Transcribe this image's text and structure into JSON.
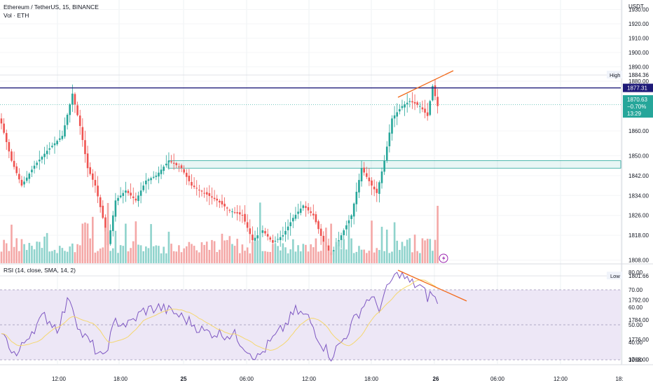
{
  "header": {
    "symbol_line": "Ethereum / TetherUS, 15, BINANCE",
    "volume_line": "Vol · ETH",
    "rsi_line": "RSI (14, close, SMA, 14, 2)"
  },
  "price_axis": {
    "currency": "USDT",
    "ticks": [
      "1930.00",
      "1920.00",
      "1910.00",
      "1900.00",
      "1890.00",
      "1880.00",
      "1860.00",
      "1850.00",
      "1842.00",
      "1834.00",
      "1826.00",
      "1818.00",
      "1808.00",
      "1792.00",
      "1784.00",
      "1776.00",
      "1768.00"
    ],
    "high_label": "High",
    "high_value": "1884.36",
    "low_label": "Low",
    "low_value": "1801.66",
    "line_value": "1877.31",
    "last_price": "1870.63",
    "last_change": "−0.70%",
    "countdown": "13:29"
  },
  "rsi_axis": {
    "ticks": [
      "80.00",
      "70.00",
      "60.00",
      "50.00",
      "40.00",
      "30.00"
    ]
  },
  "time_axis": {
    "ticks": [
      "12:00",
      "18:00",
      "25",
      "06:00",
      "12:00",
      "18:00",
      "26",
      "06:00",
      "12:00",
      "18:"
    ]
  },
  "colors": {
    "up": "#26a69a",
    "down": "#ef5350",
    "vol_up": "#8fd3cc",
    "vol_down": "#f4a7a6",
    "horizontal_line": "#1e1a78",
    "trendline": "#f26a1b",
    "rsi_line": "#7e57c2",
    "rsi_ma": "#f5d76e",
    "rsi_band": "#ede7f6",
    "zone": "#26a69a"
  },
  "chart_data": [
    {
      "type": "candlestick",
      "title": "Ethereum / TetherUS, 15, BINANCE",
      "y_unit": "USDT",
      "x_ticks": [
        "12:00",
        "18:00",
        "25",
        "06:00",
        "12:00",
        "18:00",
        "26"
      ],
      "anchors": [
        {
          "i": 0,
          "p": 1863
        },
        {
          "i": 4,
          "p": 1848
        },
        {
          "i": 8,
          "p": 1838
        },
        {
          "i": 13,
          "p": 1846
        },
        {
          "i": 18,
          "p": 1852
        },
        {
          "i": 24,
          "p": 1858
        },
        {
          "i": 28,
          "p": 1875
        },
        {
          "i": 31,
          "p": 1862
        },
        {
          "i": 34,
          "p": 1845
        },
        {
          "i": 37,
          "p": 1838
        },
        {
          "i": 40,
          "p": 1825
        },
        {
          "i": 42,
          "p": 1814
        },
        {
          "i": 45,
          "p": 1832
        },
        {
          "i": 49,
          "p": 1836
        },
        {
          "i": 53,
          "p": 1832
        },
        {
          "i": 57,
          "p": 1840
        },
        {
          "i": 61,
          "p": 1842
        },
        {
          "i": 66,
          "p": 1848
        },
        {
          "i": 71,
          "p": 1845
        },
        {
          "i": 75,
          "p": 1838
        },
        {
          "i": 80,
          "p": 1835
        },
        {
          "i": 85,
          "p": 1832
        },
        {
          "i": 90,
          "p": 1828
        },
        {
          "i": 95,
          "p": 1826
        },
        {
          "i": 99,
          "p": 1816
        },
        {
          "i": 103,
          "p": 1820
        },
        {
          "i": 107,
          "p": 1815
        },
        {
          "i": 111,
          "p": 1818
        },
        {
          "i": 115,
          "p": 1825
        },
        {
          "i": 119,
          "p": 1830
        },
        {
          "i": 123,
          "p": 1826
        },
        {
          "i": 127,
          "p": 1815
        },
        {
          "i": 130,
          "p": 1810
        },
        {
          "i": 134,
          "p": 1818
        },
        {
          "i": 138,
          "p": 1826
        },
        {
          "i": 142,
          "p": 1845
        },
        {
          "i": 146,
          "p": 1838
        },
        {
          "i": 148,
          "p": 1835
        },
        {
          "i": 151,
          "p": 1848
        },
        {
          "i": 154,
          "p": 1865
        },
        {
          "i": 158,
          "p": 1870
        },
        {
          "i": 161,
          "p": 1872
        },
        {
          "i": 165,
          "p": 1870
        },
        {
          "i": 168,
          "p": 1866
        },
        {
          "i": 170,
          "p": 1878
        },
        {
          "i": 172,
          "p": 1870
        }
      ],
      "candle_count": 173,
      "high": 1884.36,
      "low": 1801.66,
      "horizontal_level": 1877.31,
      "last": 1870.63,
      "change": "−0.70%",
      "zone": [
        1845,
        1848
      ]
    },
    {
      "type": "line",
      "title": "RSI (14, close, SMA, 14, 2)",
      "ylim": [
        30,
        80
      ],
      "y_ticks": [
        80,
        70,
        60,
        50,
        40,
        30
      ],
      "bands": [
        70,
        50,
        30
      ],
      "series": [
        {
          "name": "RSI",
          "anchors": [
            {
              "i": 0,
              "v": 45
            },
            {
              "i": 6,
              "v": 32
            },
            {
              "i": 11,
              "v": 45
            },
            {
              "i": 17,
              "v": 55
            },
            {
              "i": 22,
              "v": 48
            },
            {
              "i": 27,
              "v": 66
            },
            {
              "i": 31,
              "v": 46
            },
            {
              "i": 36,
              "v": 38
            },
            {
              "i": 40,
              "v": 30
            },
            {
              "i": 45,
              "v": 52
            },
            {
              "i": 50,
              "v": 50
            },
            {
              "i": 56,
              "v": 58
            },
            {
              "i": 62,
              "v": 60
            },
            {
              "i": 68,
              "v": 57
            },
            {
              "i": 74,
              "v": 52
            },
            {
              "i": 80,
              "v": 46
            },
            {
              "i": 86,
              "v": 45
            },
            {
              "i": 92,
              "v": 44
            },
            {
              "i": 97,
              "v": 36
            },
            {
              "i": 101,
              "v": 31
            },
            {
              "i": 106,
              "v": 40
            },
            {
              "i": 111,
              "v": 48
            },
            {
              "i": 116,
              "v": 58
            },
            {
              "i": 121,
              "v": 54
            },
            {
              "i": 126,
              "v": 40
            },
            {
              "i": 130,
              "v": 32
            },
            {
              "i": 135,
              "v": 42
            },
            {
              "i": 140,
              "v": 55
            },
            {
              "i": 145,
              "v": 66
            },
            {
              "i": 149,
              "v": 60
            },
            {
              "i": 154,
              "v": 76
            },
            {
              "i": 157,
              "v": 80
            },
            {
              "i": 161,
              "v": 74
            },
            {
              "i": 165,
              "v": 72
            },
            {
              "i": 168,
              "v": 66
            },
            {
              "i": 170,
              "v": 68
            },
            {
              "i": 172,
              "v": 62
            }
          ]
        }
      ]
    }
  ]
}
